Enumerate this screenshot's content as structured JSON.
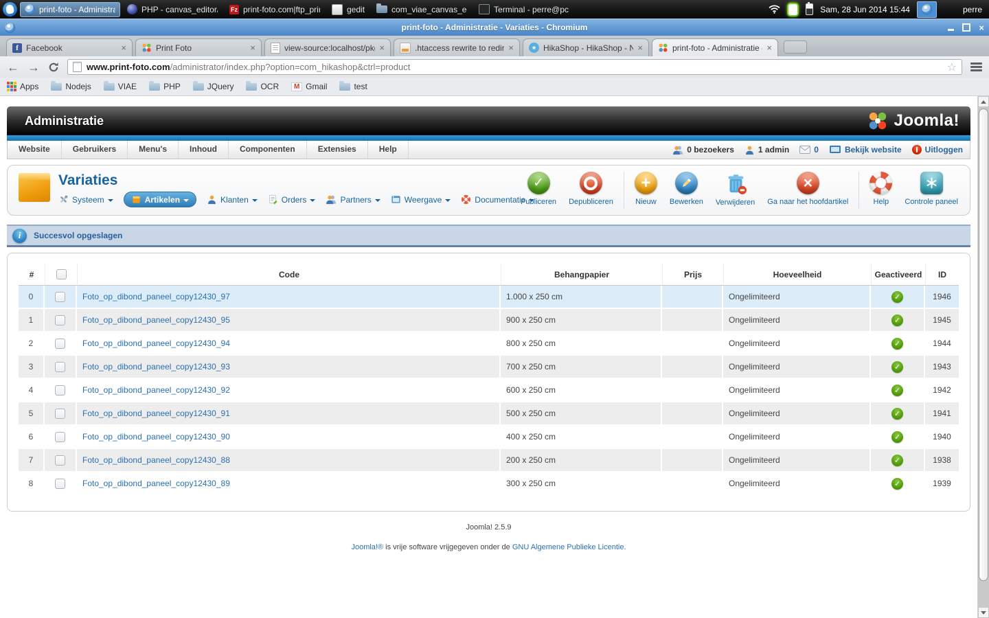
{
  "taskbar": {
    "windows": [
      {
        "label": "print-foto - Administrati...",
        "icon": "chromium",
        "active": true
      },
      {
        "label": "PHP - canvas_editor/ind...",
        "icon": "eclipse",
        "active": false
      },
      {
        "label": "print-foto.com|ftp_print-...",
        "icon": "filezilla",
        "active": false
      },
      {
        "label": "gedit",
        "icon": "gedit",
        "active": false
      },
      {
        "label": "com_viae_canvas_edito...",
        "icon": "folder",
        "active": false
      },
      {
        "label": "Terminal - perre@pc: /va...",
        "icon": "terminal",
        "active": false
      }
    ],
    "clock": "Sam, 28 Jun 2014 15:44",
    "user": "perre"
  },
  "browser": {
    "window_title": "print-foto - Administratie - Variaties - Chromium",
    "tabs": [
      {
        "title": "Facebook",
        "icon": "facebook",
        "active": false
      },
      {
        "title": "Print Foto",
        "icon": "joomla",
        "active": false
      },
      {
        "title": "view-source:localhost/pkg_ca",
        "icon": "source",
        "active": false
      },
      {
        "title": ".htaccess rewrite to redirect ro",
        "icon": "htaccess",
        "active": false
      },
      {
        "title": "HikaShop - HikaShop - New",
        "icon": "hikashop",
        "active": false
      },
      {
        "title": "print-foto - Administratie - Va",
        "icon": "joomla",
        "active": true
      }
    ],
    "url": {
      "domain": "www.print-foto.com",
      "path": "/administrator/index.php?option=com_hikashop&ctrl=product"
    },
    "bookmarks": [
      {
        "label": "Apps",
        "icon": "apps"
      },
      {
        "label": "Nodejs",
        "icon": "folder"
      },
      {
        "label": "VIAE",
        "icon": "folder"
      },
      {
        "label": "PHP",
        "icon": "folder"
      },
      {
        "label": "JQuery",
        "icon": "folder"
      },
      {
        "label": "OCR",
        "icon": "folder"
      },
      {
        "label": "Gmail",
        "icon": "gmail"
      },
      {
        "label": "test",
        "icon": "folder"
      }
    ]
  },
  "admin": {
    "header_title": "Administratie",
    "brand": "Joomla!",
    "menu": [
      "Website",
      "Gebruikers",
      "Menu's",
      "Inhoud",
      "Componenten",
      "Extensies",
      "Help"
    ],
    "status": {
      "visitors": "0 bezoekers",
      "admins": "1 admin",
      "messages": "0",
      "view_site": "Bekijk website",
      "logout": "Uitloggen"
    },
    "page_title": "Variaties",
    "submenu": [
      {
        "label": "Systeem",
        "icon": "system",
        "active": false
      },
      {
        "label": "Artikelen",
        "icon": "articles",
        "active": true
      },
      {
        "label": "Klanten",
        "icon": "customers",
        "active": false
      },
      {
        "label": "Orders",
        "icon": "orders",
        "active": false
      },
      {
        "label": "Partners",
        "icon": "partners",
        "active": false
      },
      {
        "label": "Weergave",
        "icon": "display",
        "active": false
      },
      {
        "label": "Documentatie",
        "icon": "docs",
        "active": false
      }
    ],
    "toolbar": [
      {
        "label": "Publiceren",
        "icon": "publish"
      },
      {
        "label": "Depubliceren",
        "icon": "unpublish"
      },
      {
        "sep": true
      },
      {
        "label": "Nieuw",
        "icon": "new"
      },
      {
        "label": "Bewerken",
        "icon": "edit"
      },
      {
        "label": "Verwijderen",
        "icon": "delete"
      },
      {
        "label": "Ga naar het hoofdartikel",
        "icon": "goto"
      },
      {
        "sep": true
      },
      {
        "label": "Help",
        "icon": "help"
      },
      {
        "label": "Controle paneel",
        "icon": "cpanel"
      }
    ],
    "message": "Succesvol opgeslagen"
  },
  "table": {
    "headers": {
      "num": "#",
      "code": "Code",
      "size": "Behangpapier",
      "price": "Prijs",
      "qty": "Hoeveelheid",
      "active": "Geactiveerd",
      "id": "ID"
    },
    "rows": [
      {
        "num": "0",
        "code": "Foto_op_dibond_paneel_copy12430_97",
        "size": "1.000 x 250 cm",
        "price": "",
        "qty": "Ongelimiteerd",
        "id": "1946",
        "highlight": true
      },
      {
        "num": "1",
        "code": "Foto_op_dibond_paneel_copy12430_95",
        "size": "900 x 250 cm",
        "price": "",
        "qty": "Ongelimiteerd",
        "id": "1945"
      },
      {
        "num": "2",
        "code": "Foto_op_dibond_paneel_copy12430_94",
        "size": "800 x 250 cm",
        "price": "",
        "qty": "Ongelimiteerd",
        "id": "1944"
      },
      {
        "num": "3",
        "code": "Foto_op_dibond_paneel_copy12430_93",
        "size": "700 x 250 cm",
        "price": "",
        "qty": "Ongelimiteerd",
        "id": "1943"
      },
      {
        "num": "4",
        "code": "Foto_op_dibond_paneel_copy12430_92",
        "size": "600 x 250 cm",
        "price": "",
        "qty": "Ongelimiteerd",
        "id": "1942"
      },
      {
        "num": "5",
        "code": "Foto_op_dibond_paneel_copy12430_91",
        "size": "500 x 250 cm",
        "price": "",
        "qty": "Ongelimiteerd",
        "id": "1941"
      },
      {
        "num": "6",
        "code": "Foto_op_dibond_paneel_copy12430_90",
        "size": "400 x 250 cm",
        "price": "",
        "qty": "Ongelimiteerd",
        "id": "1940"
      },
      {
        "num": "7",
        "code": "Foto_op_dibond_paneel_copy12430_88",
        "size": "200 x 250 cm",
        "price": "",
        "qty": "Ongelimiteerd",
        "id": "1938"
      },
      {
        "num": "8",
        "code": "Foto_op_dibond_paneel_copy12430_89",
        "size": "300 x 250 cm",
        "price": "",
        "qty": "Ongelimiteerd",
        "id": "1939"
      }
    ]
  },
  "footer": {
    "version": "Joomla! 2.5.9",
    "license": {
      "link1": "Joomla!®",
      "mid": " is vrije software vrijgegeven onder de ",
      "link2": "GNU Algemene Publieke Licentie",
      "end": "."
    }
  },
  "colors": {
    "accent_blue": "#17649f",
    "success_green": "#4c9a06",
    "titlebar_blue": "#4a86c6"
  }
}
